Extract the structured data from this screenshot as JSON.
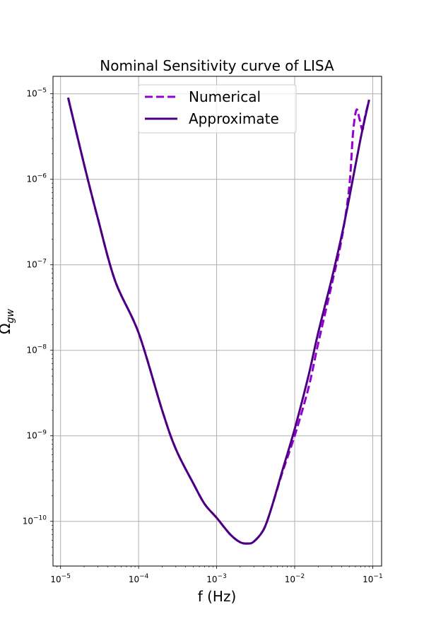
{
  "chart_data": {
    "type": "line",
    "title": "Nominal Sensitivity curve of LISA",
    "xlabel": "f (Hz)",
    "ylabel": "Ω_gw",
    "xscale": "log",
    "yscale": "log",
    "xlim": [
      8e-06,
      0.13
    ],
    "ylim": [
      3e-11,
      1.6e-05
    ],
    "grid": true,
    "legend_position": "top-center",
    "x_ticks": [
      {
        "base": "10",
        "exp": "−5"
      },
      {
        "base": "10",
        "exp": "−4"
      },
      {
        "base": "10",
        "exp": "−3"
      },
      {
        "base": "10",
        "exp": "−2"
      },
      {
        "base": "10",
        "exp": "−1"
      }
    ],
    "y_ticks": [
      {
        "base": "10",
        "exp": "−10"
      },
      {
        "base": "10",
        "exp": "−9"
      },
      {
        "base": "10",
        "exp": "−8"
      },
      {
        "base": "10",
        "exp": "−7"
      },
      {
        "base": "10",
        "exp": "−6"
      },
      {
        "base": "10",
        "exp": "−5"
      }
    ],
    "series": [
      {
        "name": "Numerical",
        "style": "dashed",
        "color": "#9400d3",
        "x": [
          1.25e-05,
          2e-05,
          3e-05,
          5e-05,
          0.0001,
          0.0002,
          0.0003,
          0.0005,
          0.0007,
          0.001,
          0.0015,
          0.002,
          0.0025,
          0.003,
          0.004,
          0.005,
          0.007,
          0.01,
          0.015,
          0.02,
          0.03,
          0.04,
          0.05,
          0.056,
          0.062,
          0.068,
          0.074,
          0.08,
          0.09
        ],
        "y": [
          9e-06,
          1.5e-06,
          3.5e-07,
          6.5e-08,
          1.6e-08,
          2e-09,
          7e-10,
          2.8e-10,
          1.6e-10,
          1.1e-10,
          7e-11,
          5.7e-11,
          5.5e-11,
          5.8e-11,
          8e-11,
          1.4e-10,
          3.8e-10,
          1e-09,
          3.6e-09,
          1.2e-08,
          6e-08,
          2e-07,
          8e-07,
          3.5e-06,
          6.5e-06,
          5e-06,
          3.8e-06,
          5.5e-06,
          8.5e-06
        ]
      },
      {
        "name": "Approximate",
        "style": "solid",
        "color": "#4b0082",
        "x": [
          1.25e-05,
          2e-05,
          3e-05,
          5e-05,
          0.0001,
          0.0002,
          0.0003,
          0.0005,
          0.0007,
          0.001,
          0.0015,
          0.002,
          0.0025,
          0.003,
          0.004,
          0.005,
          0.007,
          0.01,
          0.015,
          0.02,
          0.03,
          0.04,
          0.05,
          0.07,
          0.09
        ],
        "y": [
          9e-06,
          1.5e-06,
          3.5e-07,
          6.5e-08,
          1.6e-08,
          2e-09,
          7e-10,
          2.8e-10,
          1.6e-10,
          1.1e-10,
          7e-11,
          5.7e-11,
          5.5e-11,
          5.8e-11,
          8e-11,
          1.4e-10,
          4e-10,
          1.2e-09,
          5e-09,
          1.6e-08,
          7e-08,
          2.2e-07,
          6e-07,
          3e-06,
          8.5e-06
        ]
      }
    ]
  }
}
